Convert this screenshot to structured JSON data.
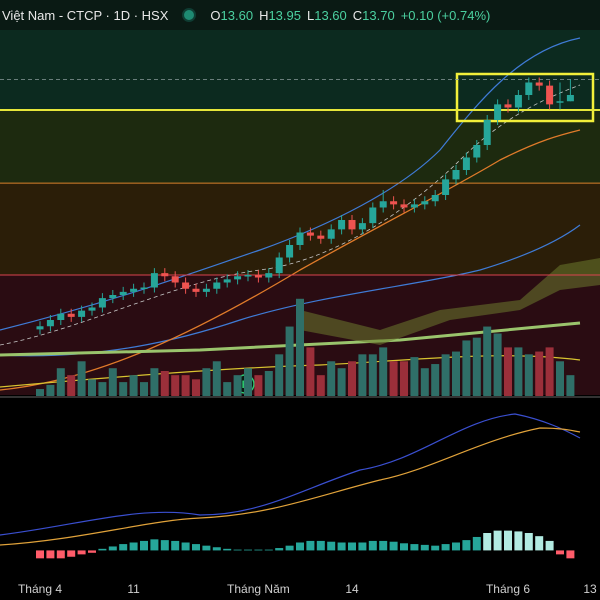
{
  "chart_data": {
    "type": "candlestick",
    "title": "Việt Nam - CTCP · 1D · HSX",
    "ohlc_labels": {
      "o": "O",
      "h": "H",
      "l": "L",
      "c": "C"
    },
    "last": {
      "o": 13.6,
      "h": 13.95,
      "l": 13.6,
      "c": 13.7,
      "change": "+0.10 (+0.74%)"
    },
    "marker": "F",
    "categories": [
      "Tháng 4",
      null,
      null,
      null,
      null,
      null,
      null,
      null,
      null,
      "11",
      null,
      null,
      null,
      null,
      null,
      null,
      null,
      null,
      null,
      null,
      null,
      "Tháng Năm",
      null,
      null,
      null,
      null,
      null,
      null,
      null,
      null,
      "14",
      null,
      null,
      null,
      null,
      null,
      null,
      null,
      null,
      null,
      null,
      null,
      null,
      null,
      null,
      "Tháng 6",
      null,
      null,
      null,
      null,
      null,
      "13"
    ],
    "open": [
      9.95,
      10.0,
      10.1,
      10.2,
      10.15,
      10.25,
      10.3,
      10.45,
      10.5,
      10.55,
      10.6,
      10.62,
      10.85,
      10.8,
      10.7,
      10.6,
      10.55,
      10.6,
      10.7,
      10.75,
      10.8,
      10.82,
      10.78,
      10.85,
      11.1,
      11.3,
      11.5,
      11.45,
      11.4,
      11.55,
      11.7,
      11.55,
      11.65,
      11.9,
      12.0,
      11.95,
      11.9,
      11.95,
      12.0,
      12.1,
      12.35,
      12.5,
      12.7,
      12.9,
      13.3,
      13.55,
      13.5,
      13.7,
      13.9,
      13.85,
      13.6,
      13.6
    ],
    "high": [
      10.08,
      10.18,
      10.28,
      10.28,
      10.33,
      10.38,
      10.53,
      10.58,
      10.63,
      10.68,
      10.7,
      10.93,
      10.93,
      10.88,
      10.78,
      10.68,
      10.68,
      10.78,
      10.83,
      10.88,
      10.9,
      10.9,
      10.93,
      11.18,
      11.38,
      11.58,
      11.58,
      11.53,
      11.63,
      11.78,
      11.78,
      11.73,
      11.98,
      12.18,
      12.08,
      12.03,
      12.03,
      12.08,
      12.18,
      12.43,
      12.58,
      12.78,
      12.98,
      13.38,
      13.63,
      13.63,
      13.78,
      13.98,
      13.98,
      13.93,
      13.9,
      13.95
    ],
    "low": [
      9.87,
      9.92,
      10.02,
      10.07,
      10.07,
      10.17,
      10.22,
      10.37,
      10.42,
      10.47,
      10.52,
      10.54,
      10.72,
      10.62,
      10.52,
      10.47,
      10.47,
      10.52,
      10.62,
      10.67,
      10.72,
      10.7,
      10.7,
      10.77,
      11.02,
      11.22,
      11.37,
      11.32,
      11.32,
      11.47,
      11.47,
      11.47,
      11.57,
      11.82,
      11.87,
      11.82,
      11.82,
      11.87,
      11.92,
      12.02,
      12.27,
      12.42,
      12.62,
      12.82,
      13.22,
      13.42,
      13.42,
      13.62,
      13.77,
      13.47,
      13.47,
      13.6
    ],
    "close": [
      10.0,
      10.1,
      10.2,
      10.15,
      10.25,
      10.3,
      10.45,
      10.5,
      10.55,
      10.6,
      10.62,
      10.85,
      10.8,
      10.7,
      10.6,
      10.55,
      10.6,
      10.7,
      10.75,
      10.8,
      10.82,
      10.78,
      10.85,
      11.1,
      11.3,
      11.5,
      11.45,
      11.4,
      11.55,
      11.7,
      11.55,
      11.65,
      11.9,
      12.0,
      11.95,
      11.9,
      11.95,
      12.0,
      12.1,
      12.35,
      12.5,
      12.7,
      12.9,
      13.3,
      13.55,
      13.5,
      13.7,
      13.9,
      13.85,
      13.55,
      13.6,
      13.7
    ],
    "volume": [
      0.5,
      0.8,
      2,
      1.5,
      2.5,
      1.2,
      1,
      2,
      1,
      1.5,
      1,
      2,
      1.8,
      1.5,
      1.5,
      1.2,
      2,
      2.5,
      1,
      1.5,
      2,
      1.5,
      1.8,
      3,
      5,
      7,
      3.5,
      1.5,
      2.5,
      2,
      2.5,
      3,
      3,
      3.5,
      2.5,
      2.5,
      2.8,
      2,
      2.3,
      3,
      3.2,
      4,
      4.2,
      5,
      4.5,
      3.5,
      3.5,
      3,
      3.2,
      3.5,
      2.5,
      1.5
    ],
    "macd_hist": [
      -1,
      -1,
      -1,
      -0.8,
      -0.5,
      -0.3,
      0.2,
      0.5,
      0.8,
      1,
      1.2,
      1.4,
      1.3,
      1.2,
      1,
      0.8,
      0.6,
      0.4,
      0.2,
      0.1,
      0.1,
      0.1,
      0.1,
      0.3,
      0.6,
      1,
      1.2,
      1.2,
      1.1,
      1,
      1,
      1,
      1.2,
      1.2,
      1.1,
      0.9,
      0.8,
      0.7,
      0.6,
      0.8,
      1,
      1.3,
      1.7,
      2.2,
      2.5,
      2.5,
      2.4,
      2.2,
      1.8,
      1.2,
      -0.5,
      -1
    ],
    "ylim": [
      8.9,
      14.74
    ],
    "vlim": [
      0,
      7.2
    ],
    "macdlim": [
      -5,
      19
    ],
    "levels": [
      {
        "value": 13.46,
        "color": "#e6e63a"
      },
      {
        "value": 12.29,
        "color": "#d9822b"
      },
      {
        "value": 10.82,
        "color": "#d9434f"
      }
    ],
    "up_color": "#26a69a",
    "down_color": "#ef5350"
  }
}
